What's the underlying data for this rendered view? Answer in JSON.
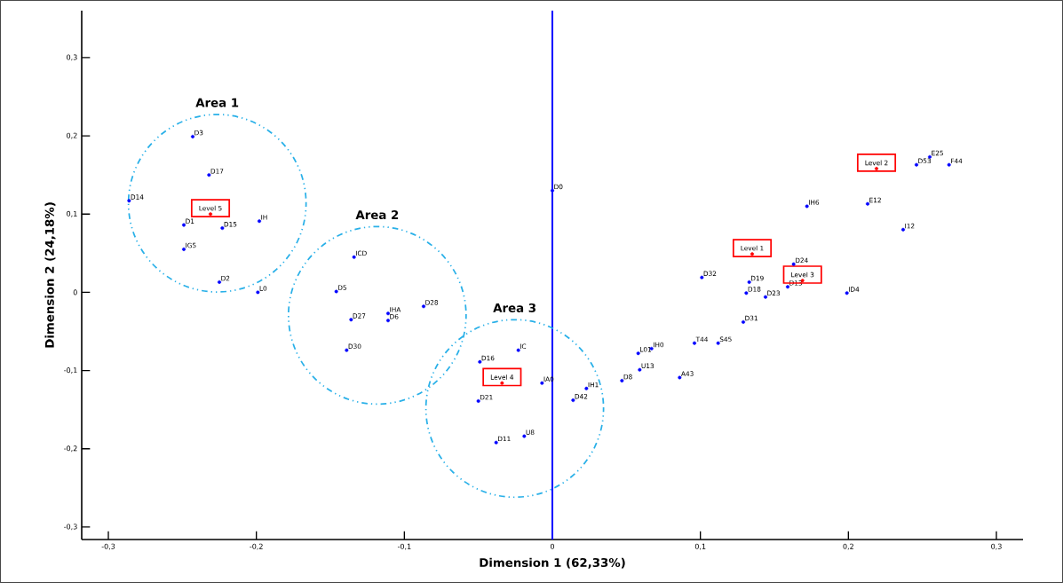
{
  "chart_data": {
    "type": "scatter",
    "xlabel": "Dimension 1 (62,33%)",
    "ylabel": "Dimension 2 (24,18%)",
    "xlim": [
      -0.318,
      0.318
    ],
    "ylim": [
      -0.316,
      0.36
    ],
    "xticks": [
      {
        "value": -0.3,
        "label": "-0,3"
      },
      {
        "value": -0.2,
        "label": "-0,2"
      },
      {
        "value": -0.1,
        "label": "-0,1"
      },
      0,
      {
        "value": 0.1,
        "label": "0,1"
      },
      {
        "value": 0.2,
        "label": "0,2"
      },
      {
        "value": 0.3,
        "label": "0,3"
      }
    ],
    "yticks": [
      {
        "value": -0.3,
        "label": "-0,3"
      },
      {
        "value": -0.2,
        "label": "-0,2"
      },
      {
        "value": -0.1,
        "label": "-0,1"
      },
      0,
      {
        "value": 0.1,
        "label": "0,1"
      },
      {
        "value": 0.2,
        "label": "0,2"
      },
      {
        "value": 0.3,
        "label": "0,3"
      }
    ],
    "marker": "circle",
    "series": [
      {
        "color": "#0000ff",
        "x": [
          -0.243,
          -0.232,
          -0.286,
          -0.198,
          -0.249,
          -0.223,
          -0.249,
          -0.225,
          -0.199,
          -0.134,
          -0.146,
          -0.136,
          -0.139,
          -0.111,
          -0.111,
          -0.087,
          -0.023,
          -0.049,
          -0.007,
          -0.05,
          -0.038,
          -0.019,
          0.014,
          0.0,
          0.172,
          0.163,
          0.101,
          0.133,
          0.159,
          0.144,
          0.131,
          0.129,
          0.096,
          0.112,
          0.067,
          0.058,
          0.059,
          0.086,
          0.023,
          0.047,
          0.255,
          0.246,
          0.268,
          0.213,
          0.237,
          0.199
        ],
        "values": [
          0.199,
          0.15,
          0.117,
          0.091,
          0.086,
          0.082,
          0.055,
          0.013,
          0.0,
          0.045,
          0.001,
          -0.035,
          -0.074,
          -0.027,
          -0.036,
          -0.018,
          -0.074,
          -0.089,
          -0.116,
          -0.139,
          -0.192,
          -0.184,
          -0.138,
          0.13,
          0.11,
          0.036,
          0.019,
          0.013,
          0.007,
          -0.006,
          -0.001,
          -0.038,
          -0.065,
          -0.065,
          -0.072,
          -0.078,
          -0.099,
          -0.109,
          -0.123,
          -0.113,
          0.173,
          0.163,
          0.163,
          0.113,
          0.08,
          -0.001
        ],
        "value_labels": [
          "D3",
          "D17",
          "D14",
          "IH",
          "D1",
          "D15",
          "IG5",
          "D2",
          "L0",
          "ICD",
          "D5",
          "D27",
          "D30",
          "IHA",
          "D6",
          "D28",
          "IC",
          "D16",
          "IA0",
          "D21",
          "D11",
          "U8",
          "D42",
          "D0",
          "IH6",
          "D24",
          "D32",
          "D19",
          "D13",
          "D23",
          "D18",
          "D31",
          "T44",
          "S45",
          "IH0",
          "L01",
          "U13",
          "A43",
          "IH1",
          "D8",
          "E25",
          "D53",
          "F44",
          "E12",
          "I12",
          "ID4"
        ]
      },
      {
        "color": "#ff0000",
        "x": [
          -0.231,
          -0.034,
          0.135,
          0.219,
          0.169
        ],
        "values": [
          0.1,
          -0.116,
          0.049,
          0.158,
          0.015
        ],
        "value_labels": [
          "Level 5",
          "Level 4",
          "Level 1",
          "Level 2",
          "Level 3"
        ]
      }
    ],
    "annotations": [
      "Area 1",
      "Area 2",
      "Area 3"
    ],
    "ref_lines": [
      {
        "axis": "x",
        "value": 0,
        "color": "#0000ff"
      }
    ]
  }
}
